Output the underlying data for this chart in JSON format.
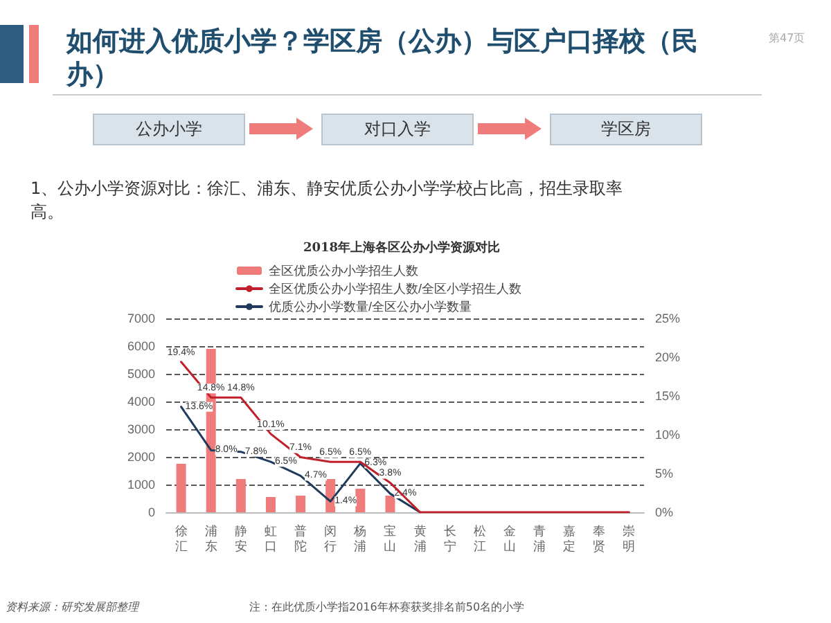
{
  "chart_data": {
    "type": "bar",
    "title": "如何进入优质小学？学区房（公办）与区户口择校（民办）",
    "subtitle": "2018年上海各区公办小学资源对比",
    "annotations": [
      "公办小学",
      "对口入学",
      "学区房",
      "1、公办小学资源对比：徐汇、浦东、静安优质公办小学学校占比高，招生录取率高。",
      "第47页",
      "资料来源：研究发展部整理",
      "注：在此优质小学指2016年杯赛获奖排名前50名的小学"
    ],
    "categories": [
      "徐汇",
      "浦东",
      "静安",
      "虹口",
      "普陀",
      "闵行",
      "杨浦",
      "宝山",
      "黄浦",
      "长宁",
      "松江",
      "金山",
      "青浦",
      "嘉定",
      "奉贤",
      "崇明"
    ],
    "series": [
      {
        "name": "全区优质公办小学招生人数",
        "color": "#ef7b7b",
        "values": [
          1750,
          5900,
          1200,
          550,
          600,
          1200,
          850,
          600,
          0,
          0,
          0,
          0,
          0,
          0,
          0,
          0
        ]
      },
      {
        "name": "全区优质公办小学招生人数/全区小学招生人数",
        "type": "line",
        "axis": "y2",
        "color": "#c0202a",
        "values": [
          19.4,
          14.8,
          14.8,
          10.1,
          7.1,
          6.5,
          6.5,
          3.8,
          0,
          0,
          0,
          0,
          0,
          0,
          0,
          0
        ],
        "value_labels": [
          "19.4%",
          "14.8%",
          "14.8%",
          "10.1%",
          "7.1%",
          "6.5%",
          "6.5%",
          "3.8%",
          null,
          null,
          null,
          null,
          null,
          null,
          null,
          null
        ]
      },
      {
        "name": "优质公办小学数量/全区公办小学数量",
        "type": "line",
        "axis": "y2",
        "color": "#1f3a5a",
        "values": [
          13.6,
          8.0,
          7.8,
          6.5,
          4.7,
          1.4,
          6.3,
          2.4,
          0,
          null,
          null,
          null,
          null,
          null,
          null,
          null
        ],
        "value_labels": [
          "13.6%",
          "8.0%",
          "7.8%",
          "6.5%",
          "4.7%",
          "1.4%",
          "6.3%",
          "2.4%",
          null,
          null,
          null,
          null,
          null,
          null,
          null,
          null
        ]
      }
    ],
    "ylim": [
      0,
      7000
    ],
    "yticks": [
      0,
      1000,
      2000,
      3000,
      4000,
      5000,
      6000,
      7000
    ],
    "y2lim": [
      0,
      25
    ],
    "y2ticks": [
      {
        "value": 0,
        "label": "0%"
      },
      {
        "value": 5,
        "label": "5%"
      },
      {
        "value": 10,
        "label": "10%"
      },
      {
        "value": 15,
        "label": "15%"
      },
      {
        "value": 20,
        "label": "20%"
      },
      {
        "value": 25,
        "label": "25%"
      }
    ],
    "grid": "y",
    "legend": "top",
    "marker": "none",
    "line_style": "solid"
  }
}
